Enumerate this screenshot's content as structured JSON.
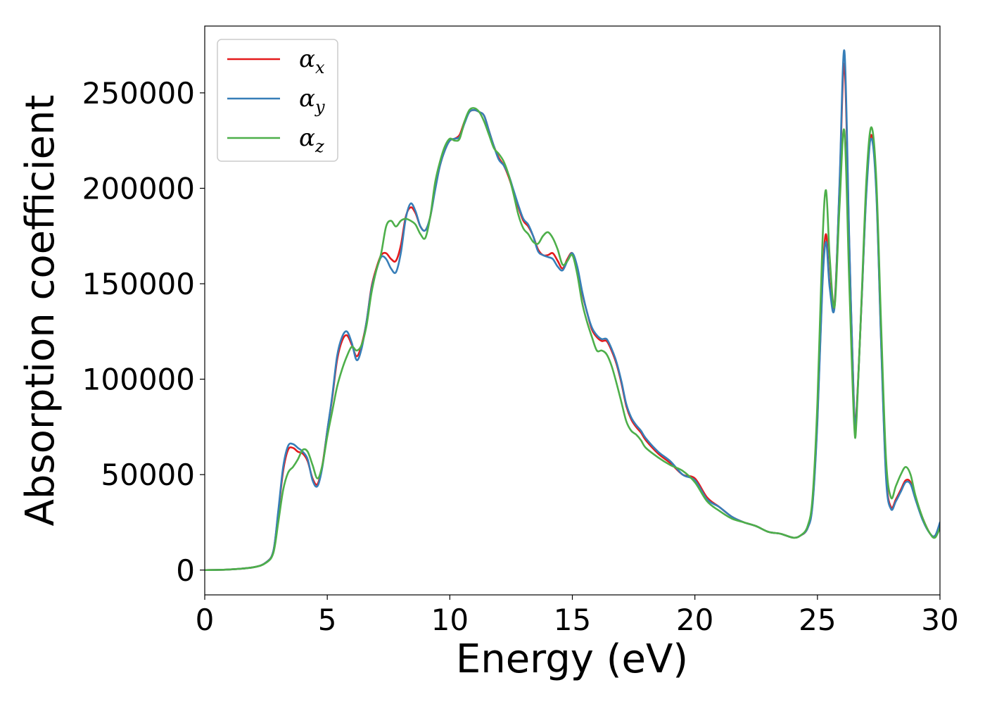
{
  "chart_data": {
    "type": "line",
    "xlabel": "Energy (eV)",
    "ylabel": "Absorption coefficient",
    "xlim": [
      0,
      30
    ],
    "ylim": [
      -13000,
      285000
    ],
    "xticks": [
      0,
      5,
      10,
      15,
      20,
      25,
      30
    ],
    "xtick_labels": [
      "0",
      "5",
      "10",
      "15",
      "20",
      "25",
      "30"
    ],
    "yticks": [
      0,
      50000,
      100000,
      150000,
      200000,
      250000
    ],
    "ytick_labels": [
      "0",
      "50000",
      "100000",
      "150000",
      "200000",
      "250000"
    ],
    "grid": false,
    "legend": "top-left",
    "series": [
      {
        "name": "α_x",
        "legend_main": "α",
        "legend_sub": "x",
        "color": "#e41a1c",
        "x": [
          0,
          1,
          2,
          2.5,
          2.8,
          3.0,
          3.2,
          3.4,
          3.6,
          3.8,
          4.0,
          4.2,
          4.4,
          4.6,
          4.8,
          5.0,
          5.2,
          5.4,
          5.6,
          5.8,
          6.0,
          6.2,
          6.4,
          6.6,
          6.8,
          7.0,
          7.2,
          7.4,
          7.6,
          7.8,
          8.0,
          8.2,
          8.4,
          8.6,
          8.8,
          9.0,
          9.2,
          9.4,
          9.6,
          9.8,
          10.0,
          10.2,
          10.4,
          10.6,
          10.8,
          11.0,
          11.2,
          11.4,
          11.6,
          11.8,
          12.0,
          12.2,
          12.4,
          12.6,
          12.8,
          13.0,
          13.2,
          13.4,
          13.6,
          13.8,
          14.0,
          14.2,
          14.4,
          14.6,
          14.8,
          15.0,
          15.2,
          15.4,
          15.6,
          15.8,
          16.0,
          16.2,
          16.4,
          16.6,
          16.8,
          17.0,
          17.2,
          17.4,
          17.6,
          17.8,
          18.0,
          18.5,
          19.0,
          19.5,
          20.0,
          20.5,
          21.0,
          21.5,
          22.0,
          22.5,
          23.0,
          23.5,
          24.0,
          24.3,
          24.6,
          24.8,
          25.0,
          25.2,
          25.35,
          25.5,
          25.7,
          25.9,
          26.1,
          26.3,
          26.5,
          26.6,
          26.8,
          27.0,
          27.2,
          27.4,
          27.6,
          27.8,
          28.0,
          28.2,
          28.4,
          28.6,
          28.8,
          29.0,
          29.3,
          29.6,
          29.8,
          30.0
        ],
        "y": [
          0,
          300,
          1500,
          4000,
          10000,
          30000,
          52000,
          63000,
          64000,
          62000,
          61000,
          57000,
          48000,
          45000,
          55000,
          73000,
          90000,
          110000,
          120000,
          123000,
          118000,
          112000,
          118000,
          130000,
          148000,
          158000,
          165000,
          166000,
          163000,
          162000,
          170000,
          185000,
          190000,
          187000,
          180000,
          178000,
          185000,
          200000,
          212000,
          220000,
          225000,
          226000,
          228000,
          235000,
          240000,
          241000,
          240000,
          238000,
          230000,
          222000,
          216000,
          212000,
          206000,
          198000,
          190000,
          183000,
          180000,
          175000,
          168000,
          165000,
          165000,
          166000,
          162000,
          158000,
          163000,
          166000,
          158000,
          145000,
          135000,
          126000,
          122000,
          120000,
          120000,
          115000,
          108000,
          98000,
          86000,
          79000,
          75000,
          72000,
          68000,
          61000,
          56000,
          50000,
          48000,
          38000,
          33000,
          28000,
          25000,
          23000,
          20000,
          19000,
          17000,
          18000,
          22000,
          35000,
          80000,
          150000,
          176000,
          150000,
          140000,
          200000,
          265000,
          170000,
          82000,
          85000,
          140000,
          200000,
          228000,
          200000,
          120000,
          50000,
          33000,
          37000,
          42000,
          47000,
          46000,
          38000,
          27000,
          19000,
          18000,
          24000
        ]
      },
      {
        "name": "α_y",
        "legend_main": "α",
        "legend_sub": "y",
        "color": "#377eb8",
        "x": [
          0,
          1,
          2,
          2.5,
          2.8,
          3.0,
          3.2,
          3.4,
          3.6,
          3.8,
          4.0,
          4.2,
          4.4,
          4.6,
          4.8,
          5.0,
          5.2,
          5.4,
          5.6,
          5.8,
          6.0,
          6.2,
          6.4,
          6.6,
          6.8,
          7.0,
          7.2,
          7.4,
          7.6,
          7.8,
          8.0,
          8.2,
          8.4,
          8.6,
          8.8,
          9.0,
          9.2,
          9.4,
          9.6,
          9.8,
          10.0,
          10.2,
          10.4,
          10.6,
          10.8,
          11.0,
          11.2,
          11.4,
          11.6,
          11.8,
          12.0,
          12.2,
          12.4,
          12.6,
          12.8,
          13.0,
          13.2,
          13.4,
          13.6,
          13.8,
          14.0,
          14.2,
          14.4,
          14.6,
          14.8,
          15.0,
          15.2,
          15.4,
          15.6,
          15.8,
          16.0,
          16.2,
          16.4,
          16.6,
          16.8,
          17.0,
          17.2,
          17.4,
          17.6,
          17.8,
          18.0,
          18.5,
          19.0,
          19.5,
          20.0,
          20.5,
          21.0,
          21.5,
          22.0,
          22.5,
          23.0,
          23.5,
          24.0,
          24.3,
          24.6,
          24.8,
          25.0,
          25.2,
          25.35,
          25.5,
          25.7,
          25.9,
          26.1,
          26.3,
          26.5,
          26.6,
          26.8,
          27.0,
          27.2,
          27.4,
          27.6,
          27.8,
          28.0,
          28.2,
          28.4,
          28.6,
          28.8,
          29.0,
          29.3,
          29.6,
          29.8,
          30.0
        ],
        "y": [
          0,
          300,
          1500,
          4000,
          10000,
          31000,
          54000,
          65000,
          66000,
          64000,
          62000,
          58000,
          47000,
          44000,
          54000,
          73000,
          91000,
          112000,
          122000,
          125000,
          119000,
          110000,
          116000,
          130000,
          147000,
          157000,
          164000,
          163000,
          158000,
          156000,
          166000,
          184000,
          192000,
          188000,
          180000,
          178000,
          185000,
          199000,
          212000,
          220000,
          225000,
          226000,
          227000,
          234000,
          240000,
          241000,
          240000,
          238000,
          230000,
          222000,
          215000,
          212000,
          207000,
          199000,
          191000,
          184000,
          181000,
          175000,
          167000,
          165000,
          164000,
          163000,
          159000,
          157000,
          162000,
          166000,
          159000,
          146000,
          135000,
          127000,
          123000,
          121000,
          121000,
          116000,
          109000,
          99000,
          87000,
          80000,
          76000,
          73000,
          69000,
          62000,
          57000,
          50000,
          47000,
          37000,
          33000,
          28000,
          25000,
          23000,
          20000,
          19000,
          17000,
          18000,
          22000,
          34000,
          78000,
          148000,
          172000,
          148000,
          138000,
          202000,
          272000,
          172000,
          81000,
          84000,
          140000,
          198000,
          226000,
          198000,
          118000,
          48000,
          32000,
          36000,
          41000,
          46000,
          45000,
          37000,
          26000,
          19000,
          18000,
          25000
        ]
      },
      {
        "name": "α_z",
        "legend_main": "α",
        "legend_sub": "z",
        "color": "#4daf4a",
        "x": [
          0,
          1,
          2,
          2.5,
          2.8,
          3.0,
          3.2,
          3.4,
          3.6,
          3.8,
          4.0,
          4.2,
          4.4,
          4.6,
          4.8,
          5.0,
          5.2,
          5.4,
          5.6,
          5.8,
          6.0,
          6.2,
          6.4,
          6.6,
          6.8,
          7.0,
          7.2,
          7.4,
          7.6,
          7.8,
          8.0,
          8.2,
          8.4,
          8.6,
          8.8,
          9.0,
          9.2,
          9.4,
          9.6,
          9.8,
          10.0,
          10.2,
          10.4,
          10.6,
          10.8,
          11.0,
          11.2,
          11.4,
          11.6,
          11.8,
          12.0,
          12.2,
          12.4,
          12.6,
          12.8,
          13.0,
          13.2,
          13.4,
          13.6,
          13.8,
          14.0,
          14.2,
          14.4,
          14.6,
          14.8,
          15.0,
          15.2,
          15.4,
          15.6,
          15.8,
          16.0,
          16.2,
          16.4,
          16.6,
          16.8,
          17.0,
          17.2,
          17.4,
          17.6,
          17.8,
          18.0,
          18.5,
          19.0,
          19.5,
          20.0,
          20.5,
          21.0,
          21.5,
          22.0,
          22.5,
          23.0,
          23.5,
          24.0,
          24.3,
          24.6,
          24.8,
          25.0,
          25.2,
          25.35,
          25.5,
          25.7,
          25.9,
          26.1,
          26.3,
          26.5,
          26.6,
          26.8,
          27.0,
          27.2,
          27.4,
          27.6,
          27.8,
          28.0,
          28.2,
          28.4,
          28.6,
          28.8,
          29.0,
          29.3,
          29.6,
          29.8,
          30.0
        ],
        "y": [
          0,
          300,
          1500,
          3800,
          9000,
          25000,
          42000,
          51000,
          54000,
          58000,
          63000,
          62000,
          55000,
          48000,
          55000,
          70000,
          83000,
          96000,
          105000,
          112000,
          117000,
          115000,
          118000,
          128000,
          145000,
          157000,
          166000,
          180000,
          183000,
          180000,
          183000,
          184000,
          183000,
          181000,
          176000,
          174000,
          185000,
          203000,
          214000,
          222000,
          226000,
          225000,
          226000,
          235000,
          241000,
          242000,
          240000,
          235000,
          228000,
          221000,
          218000,
          214000,
          207000,
          197000,
          186000,
          179000,
          176000,
          172000,
          171000,
          175000,
          177000,
          174000,
          168000,
          160000,
          162000,
          165000,
          155000,
          140000,
          130000,
          122000,
          115000,
          115000,
          113000,
          107000,
          98000,
          88000,
          78000,
          73000,
          71000,
          68000,
          64000,
          59000,
          55000,
          52000,
          46000,
          36000,
          31000,
          27000,
          25000,
          23000,
          20000,
          19000,
          17000,
          18000,
          23000,
          38000,
          88000,
          170000,
          199000,
          164000,
          138000,
          190000,
          230000,
          150000,
          76000,
          80000,
          142000,
          205000,
          232000,
          205000,
          128000,
          58000,
          38000,
          44000,
          50000,
          54000,
          50000,
          39000,
          27000,
          19000,
          17000,
          22000
        ]
      }
    ]
  }
}
